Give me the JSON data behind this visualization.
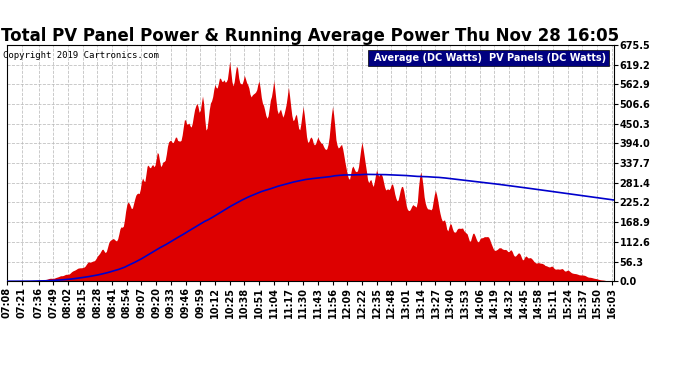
{
  "title": "Total PV Panel Power & Running Average Power Thu Nov 28 16:05",
  "copyright": "Copyright 2019 Cartronics.com",
  "legend_labels": [
    "Average (DC Watts)",
    "PV Panels (DC Watts)"
  ],
  "legend_colors_bg": [
    "#0000bb",
    "#cc0000"
  ],
  "legend_text_color": "#ffffff",
  "y_max": 675.5,
  "y_min": 0.0,
  "y_ticks": [
    0.0,
    56.3,
    112.6,
    168.9,
    225.2,
    281.4,
    337.7,
    394.0,
    450.3,
    506.6,
    562.9,
    619.2,
    675.5
  ],
  "background_color": "#ffffff",
  "plot_bg_color": "#ffffff",
  "grid_color": "#bbbbbb",
  "bar_color": "#dd0000",
  "avg_line_color": "#0000cc",
  "title_fontsize": 12,
  "tick_fontsize": 7,
  "x_tick_labels": [
    "07:08",
    "07:21",
    "07:36",
    "07:49",
    "08:02",
    "08:15",
    "08:28",
    "08:41",
    "08:54",
    "09:07",
    "09:20",
    "09:33",
    "09:46",
    "09:59",
    "10:12",
    "10:25",
    "10:38",
    "10:51",
    "11:04",
    "11:17",
    "11:30",
    "11:43",
    "11:56",
    "12:09",
    "12:22",
    "12:35",
    "12:48",
    "13:01",
    "13:14",
    "13:27",
    "13:40",
    "13:53",
    "14:06",
    "14:19",
    "14:32",
    "14:45",
    "14:58",
    "15:11",
    "15:24",
    "15:37",
    "15:50",
    "16:03"
  ]
}
